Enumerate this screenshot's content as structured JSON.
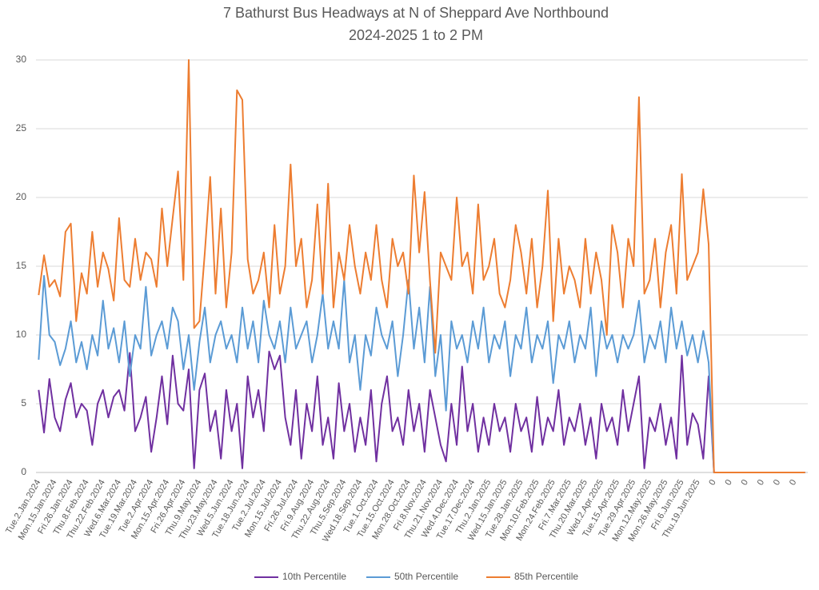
{
  "chart_data": {
    "type": "line",
    "title": "7 Bathurst Bus Headways at N of Sheppard Ave Northbound",
    "subtitle": "2024-2025 1 to 2 PM",
    "categories": [
      "Tue.2.Jan.2024",
      null,
      null,
      "Mon.15.Jan.2024",
      null,
      null,
      "Fri.26.Jan.2024",
      null,
      null,
      "Thu.8.Feb.2024",
      null,
      null,
      "Thu.22.Feb.2024",
      null,
      null,
      "Wed.6.Mar.2024",
      null,
      null,
      "Tue.19.Mar.2024",
      null,
      null,
      "Tue.2.Apr.2024",
      null,
      null,
      "Mon.15.Apr.2024",
      null,
      null,
      "Fri.26.Apr.2024",
      null,
      null,
      "Thu.9.May.2024",
      null,
      null,
      "Thu.23.May.2024",
      null,
      null,
      "Wed.5.Jun.2024",
      null,
      null,
      "Tue.18.Jun.2024",
      null,
      null,
      "Tue.2.Jul.2024",
      null,
      null,
      "Mon.15.Jul.2024",
      null,
      null,
      "Fri.26.Jul.2024",
      null,
      null,
      "Fri.9.Aug.2024",
      null,
      null,
      "Thu.22.Aug.2024",
      null,
      null,
      "Thu.5.Sep.2024",
      null,
      null,
      "Wed.18.Sep.2024",
      null,
      null,
      "Tue.1.Oct.2024",
      null,
      null,
      "Tue.15.Oct.2024",
      null,
      null,
      "Mon.28.Oct.2024",
      null,
      null,
      "Fri.8.Nov.2024",
      null,
      null,
      "Thu.21.Nov.2024",
      null,
      null,
      "Wed.4.Dec.2024",
      null,
      null,
      "Tue.17.Dec.2024",
      null,
      null,
      "Thu.2.Jan.2025",
      null,
      null,
      "Wed.15.Jan.2025",
      null,
      null,
      "Tue.28.Jan.2025",
      null,
      null,
      "Mon.10.Feb.2025",
      null,
      null,
      "Mon.24.Feb.2025",
      null,
      null,
      "Fri.7.Mar.2025",
      null,
      null,
      "Thu.20.Mar.2025",
      null,
      null,
      "Wed.2.Apr.2025",
      null,
      null,
      "Tue.15.Apr.2025",
      null,
      null,
      "Tue.29.Apr.2025",
      null,
      null,
      "Mon.12.May.2025",
      null,
      null,
      "Mon.26.May.2025",
      null,
      null,
      "Fri.6.Jun.2025",
      null,
      null,
      "Thu.19.Jun.2025",
      null,
      null,
      "0",
      null,
      null,
      "0",
      null,
      null,
      "0",
      null,
      null,
      "0",
      null,
      null,
      "0",
      null,
      null,
      "0",
      null,
      null
    ],
    "series": [
      {
        "name": "10th Percentile",
        "color": "#7030a0",
        "values": [
          6,
          2.9,
          6.8,
          4,
          3,
          5.3,
          6.5,
          4,
          5,
          4.5,
          2,
          5,
          6,
          4,
          5.5,
          6,
          4.5,
          8.7,
          3,
          4,
          5.5,
          1.5,
          4,
          7,
          3.5,
          8.5,
          5,
          4.5,
          7.5,
          0.3,
          6,
          7.2,
          3,
          4.5,
          1,
          6,
          3,
          5,
          0.3,
          7,
          4,
          6,
          3,
          8.8,
          7.5,
          8.5,
          4,
          2,
          6,
          1,
          5,
          3,
          7,
          2,
          4,
          1,
          6.5,
          3,
          5,
          1.5,
          4,
          2,
          6,
          0.8,
          5,
          7,
          3,
          4,
          2,
          6,
          3,
          5,
          1.5,
          6,
          4,
          2,
          0.8,
          5,
          2,
          7.7,
          3,
          5,
          1.5,
          4,
          2,
          5,
          3,
          4,
          1.5,
          5,
          3,
          4,
          1.5,
          5.5,
          2,
          4,
          3,
          6,
          2,
          4,
          3,
          5,
          2,
          4,
          1,
          5,
          3,
          4,
          2,
          6,
          3,
          5,
          7,
          0.3,
          4,
          3,
          5,
          2,
          4,
          1,
          8.5,
          2,
          4.3,
          3.5,
          1,
          7,
          0,
          0,
          0,
          0,
          0,
          0,
          0,
          0,
          0,
          0,
          0,
          0,
          0,
          0,
          0,
          0,
          0,
          0
        ]
      },
      {
        "name": "50th Percentile",
        "color": "#5b9bd5",
        "values": [
          8.2,
          14.3,
          10,
          9.5,
          7.8,
          9,
          11,
          8,
          9.5,
          7.5,
          10,
          8.5,
          12.5,
          9,
          10.5,
          8,
          11,
          7,
          10,
          9,
          13.5,
          8.5,
          10,
          11,
          9,
          12,
          11,
          7.5,
          10,
          6,
          9.5,
          12,
          8,
          10,
          11,
          9,
          10,
          8,
          12,
          9,
          11,
          8,
          12.5,
          10,
          9,
          11,
          8,
          12,
          9,
          10,
          11,
          8,
          10,
          13,
          9,
          11,
          9,
          14,
          8,
          10,
          6,
          10,
          8.5,
          12,
          10,
          9,
          11,
          7,
          10,
          14,
          9,
          12,
          8,
          13.5,
          7,
          10,
          4.5,
          11,
          9,
          10,
          8,
          11,
          9,
          12,
          8,
          10,
          9,
          11,
          7,
          10,
          9,
          12,
          8,
          10,
          9,
          11,
          6.5,
          10,
          9,
          11,
          8,
          10,
          9,
          12,
          7,
          11,
          9,
          10,
          8,
          10,
          9,
          10,
          12.5,
          8,
          10,
          9,
          11,
          8,
          12,
          9,
          11,
          8.5,
          10,
          8,
          10.3,
          8,
          0,
          0,
          0,
          0,
          0,
          0,
          0,
          0,
          0,
          0,
          0,
          0,
          0,
          0,
          0,
          0,
          0,
          0
        ]
      },
      {
        "name": "85th Percentile",
        "color": "#ed7d31",
        "values": [
          12.9,
          15.8,
          13.5,
          14,
          12.8,
          17.5,
          18.1,
          11,
          14.5,
          13,
          17.5,
          13.5,
          16,
          14.8,
          12.5,
          18.5,
          14,
          13.5,
          17,
          14,
          16,
          15.5,
          13.5,
          19.2,
          15,
          18.5,
          21.9,
          14,
          30,
          10.5,
          11,
          16,
          21.5,
          13,
          19.2,
          12,
          16,
          27.8,
          27.1,
          15.5,
          13,
          14,
          16,
          12,
          18,
          13,
          15,
          22.4,
          15,
          17,
          12,
          14,
          19.5,
          13,
          21,
          12,
          16,
          14,
          18,
          15,
          13,
          16,
          14,
          18,
          14,
          12,
          17,
          15,
          16,
          13,
          21.6,
          16,
          20.4,
          14,
          8.7,
          16,
          15,
          14,
          20,
          15,
          16,
          13,
          19.5,
          14,
          15,
          17,
          13,
          12,
          14,
          18,
          16,
          13,
          17,
          12,
          15,
          20.5,
          11,
          17,
          13,
          15,
          14,
          12,
          17,
          13,
          16,
          14,
          10,
          18,
          16,
          12,
          17,
          15,
          27.3,
          13,
          14,
          17,
          12,
          16,
          18,
          13,
          21.7,
          14,
          15,
          16,
          20.6,
          16.6,
          0,
          0,
          0,
          0,
          0,
          0,
          0,
          0,
          0,
          0,
          0,
          0,
          0,
          0,
          0,
          0,
          0,
          0
        ]
      }
    ],
    "ylim": [
      0,
      30
    ],
    "yticks": [
      0,
      5,
      10,
      15,
      20,
      25,
      30
    ],
    "grid": true,
    "legend": "bottom"
  }
}
